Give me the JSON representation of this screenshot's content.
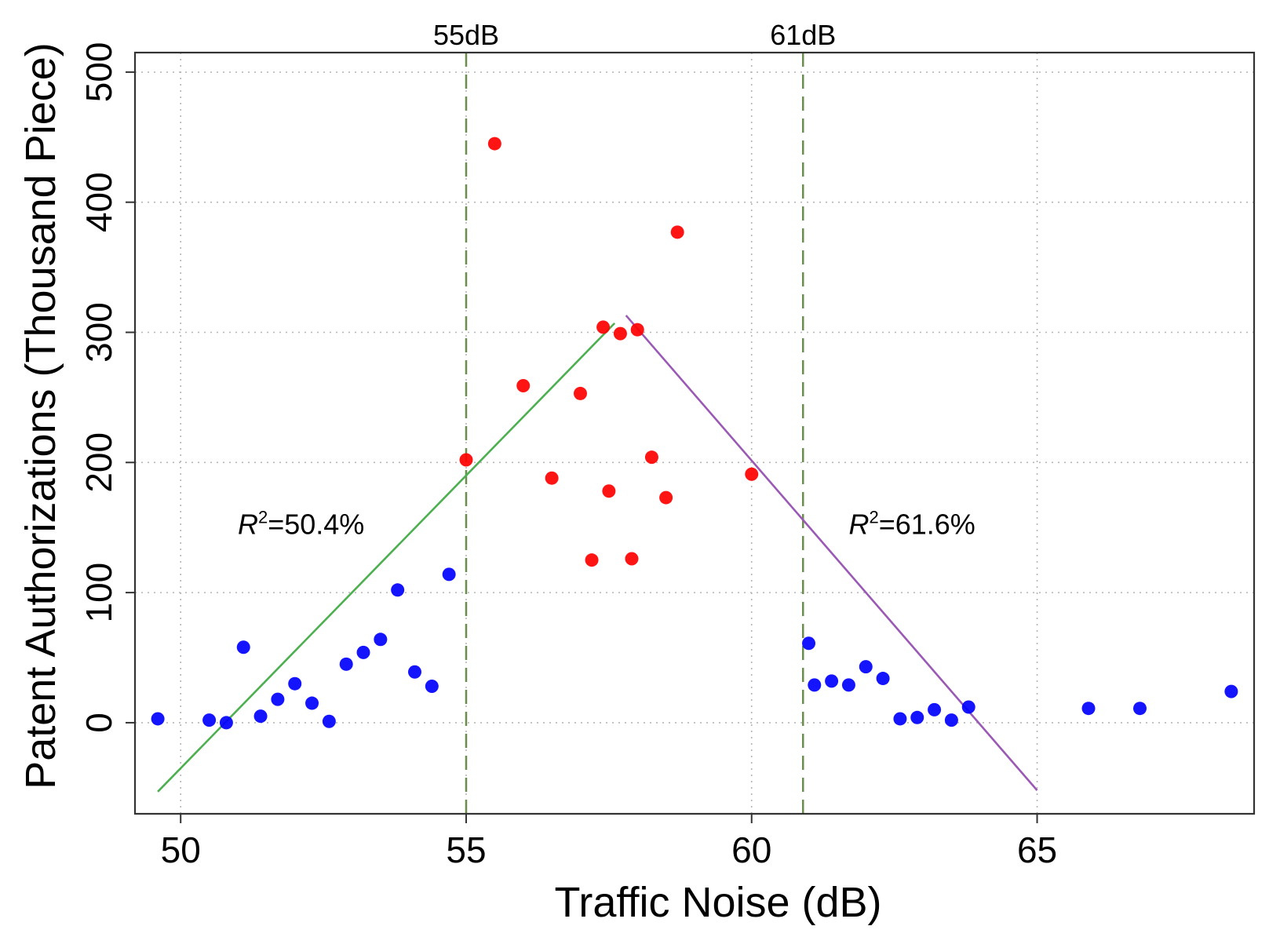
{
  "chart_data": {
    "type": "scatter",
    "title": "",
    "xlabel": "Traffic Noise (dB)",
    "ylabel": "Patent Authorizations (Thousand Piece)",
    "xlim": [
      49.2,
      68.8
    ],
    "ylim": [
      -70,
      515
    ],
    "x_ticks": [
      50,
      55,
      60,
      65
    ],
    "y_ticks": [
      0,
      100,
      200,
      300,
      400,
      500
    ],
    "grid": true,
    "grid_style": "dotted",
    "reference_lines": [
      {
        "x": 55,
        "label": "55dB",
        "color": "#6b8e4e"
      },
      {
        "x": 60.9,
        "label": "61dB",
        "color": "#6b8e4e"
      }
    ],
    "trend_lines": [
      {
        "name": "",
        "color": "#4caf50",
        "points": [
          [
            49.6,
            -53
          ],
          [
            57.6,
            307
          ]
        ]
      },
      {
        "name": "",
        "color": "#9b59b6",
        "points": [
          [
            57.8,
            313
          ],
          [
            65.0,
            -52
          ]
        ]
      }
    ],
    "annotations": [
      {
        "symbol": "R",
        "sup": "2",
        "text": "=50.4%",
        "x": 51.0,
        "y": 145
      },
      {
        "symbol": "R",
        "sup": "2",
        "text": "=61.6%",
        "x": 61.7,
        "y": 145
      }
    ],
    "series": [
      {
        "name": "",
        "color": "#0000ff",
        "points": [
          [
            49.6,
            3
          ],
          [
            50.5,
            2
          ],
          [
            50.8,
            0
          ],
          [
            51.1,
            58
          ],
          [
            51.4,
            5
          ],
          [
            51.7,
            18
          ],
          [
            52.0,
            30
          ],
          [
            52.3,
            15
          ],
          [
            52.6,
            1
          ],
          [
            52.9,
            45
          ],
          [
            53.2,
            54
          ],
          [
            53.5,
            64
          ],
          [
            53.8,
            102
          ],
          [
            54.1,
            39
          ],
          [
            54.4,
            28
          ],
          [
            54.7,
            114
          ],
          [
            61.0,
            61
          ],
          [
            61.1,
            29
          ],
          [
            61.4,
            32
          ],
          [
            61.7,
            29
          ],
          [
            62.0,
            43
          ],
          [
            62.3,
            34
          ],
          [
            62.6,
            3
          ],
          [
            62.9,
            4
          ],
          [
            63.2,
            10
          ],
          [
            63.5,
            2
          ],
          [
            63.8,
            12
          ],
          [
            65.9,
            11
          ],
          [
            66.8,
            11
          ],
          [
            68.4,
            24
          ]
        ]
      },
      {
        "name": "",
        "color": "#ff0000",
        "points": [
          [
            55.0,
            202
          ],
          [
            55.5,
            445
          ],
          [
            56.0,
            259
          ],
          [
            56.5,
            188
          ],
          [
            57.0,
            253
          ],
          [
            57.2,
            125
          ],
          [
            57.4,
            304
          ],
          [
            57.5,
            178
          ],
          [
            57.7,
            299
          ],
          [
            57.9,
            126
          ],
          [
            58.0,
            302
          ],
          [
            58.25,
            204
          ],
          [
            58.5,
            173
          ],
          [
            58.7,
            377
          ],
          [
            60.0,
            191
          ]
        ]
      }
    ]
  }
}
